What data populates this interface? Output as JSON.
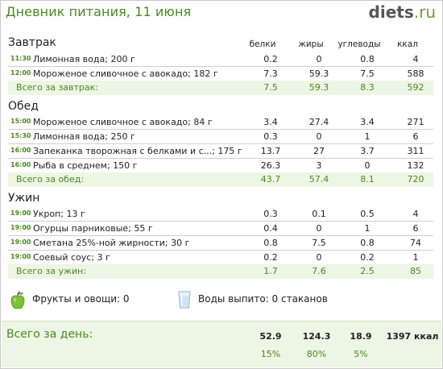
{
  "header": {
    "title": "Дневник питания, 11 июня",
    "logo_main": "diets",
    "logo_tld": ".ru"
  },
  "columns": {
    "protein": "белки",
    "fat": "жиры",
    "carbs": "углеводы",
    "kcal": "ккал"
  },
  "meals": [
    {
      "title": "Завтрак",
      "items": [
        {
          "time": "11:30",
          "name": "Лимонная вода; 200 г",
          "protein": "0.2",
          "fat": "0",
          "carbs": "0.8",
          "kcal": "4"
        },
        {
          "time": "12:00",
          "name": "Мороженое сливочное с авокадо; 182 г",
          "protein": "7.3",
          "fat": "59.3",
          "carbs": "7.5",
          "kcal": "588"
        }
      ],
      "total": {
        "label": "Всего за завтрак:",
        "protein": "7.5",
        "fat": "59.3",
        "carbs": "8.3",
        "kcal": "592"
      }
    },
    {
      "title": "Обед",
      "items": [
        {
          "time": "15:00",
          "name": "Мороженое сливочное с авокадо; 84 г",
          "protein": "3.4",
          "fat": "27.4",
          "carbs": "3.4",
          "kcal": "271"
        },
        {
          "time": "15:30",
          "name": "Лимонная вода; 250 г",
          "protein": "0.3",
          "fat": "0",
          "carbs": "1",
          "kcal": "6"
        },
        {
          "time": "16:00",
          "name": "Запеканка творожная с белками и с...; 175 г",
          "protein": "13.7",
          "fat": "27",
          "carbs": "3.7",
          "kcal": "311"
        },
        {
          "time": "16:00",
          "name": "Рыба в среднем; 150 г",
          "protein": "26.3",
          "fat": "3",
          "carbs": "0",
          "kcal": "132"
        }
      ],
      "total": {
        "label": "Всего за обед:",
        "protein": "43.7",
        "fat": "57.4",
        "carbs": "8.1",
        "kcal": "720"
      }
    },
    {
      "title": "Ужин",
      "items": [
        {
          "time": "19:00",
          "name": "Укроп; 13 г",
          "protein": "0.3",
          "fat": "0.1",
          "carbs": "0.5",
          "kcal": "4"
        },
        {
          "time": "19:00",
          "name": "Огурцы парниковые; 55 г",
          "protein": "0.4",
          "fat": "0",
          "carbs": "1",
          "kcal": "6"
        },
        {
          "time": "19:00",
          "name": "Сметана 25%-ной жирности; 30 г",
          "protein": "0.8",
          "fat": "7.5",
          "carbs": "0.8",
          "kcal": "74"
        },
        {
          "time": "19:00",
          "name": "Соевый соус; 3 г",
          "protein": "0.2",
          "fat": "0",
          "carbs": "0.2",
          "kcal": "1"
        }
      ],
      "total": {
        "label": "Всего за ужин:",
        "protein": "1.7",
        "fat": "7.6",
        "carbs": "2.5",
        "kcal": "85"
      }
    }
  ],
  "extras": {
    "fruits": "Фрукты и овощи: 0",
    "water": "Воды выпито: 0 стаканов",
    "fruits_icon": "apple-icon",
    "water_icon": "glass-icon"
  },
  "day_total": {
    "label": "Всего за день:",
    "protein": "52.9",
    "fat": "124.3",
    "carbs": "18.9",
    "kcal": "1397 ккал",
    "protein_pct": "15%",
    "fat_pct": "80%",
    "carbs_pct": "5%"
  },
  "colors": {
    "accent": "#4a8a1f",
    "total_bg": "#edf5e4"
  }
}
